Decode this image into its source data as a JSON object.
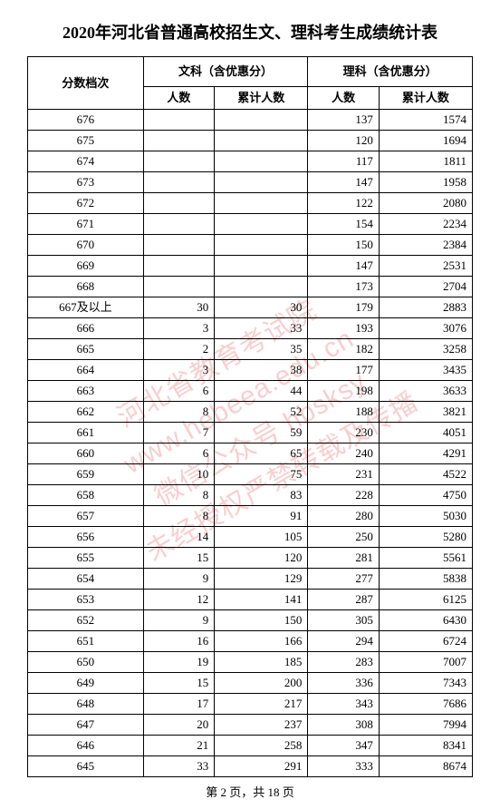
{
  "title": "2020年河北省普通高校招生文、理科考生成绩统计表",
  "header": {
    "score_col": "分数档次",
    "wen_group": "文科（含优惠分）",
    "li_group": "理科（含优惠分）",
    "count": "人数",
    "cum": "累计人数"
  },
  "rows": [
    {
      "score": "676",
      "wc": "",
      "wcc": "",
      "lc": "137",
      "lcc": "1574"
    },
    {
      "score": "675",
      "wc": "",
      "wcc": "",
      "lc": "120",
      "lcc": "1694"
    },
    {
      "score": "674",
      "wc": "",
      "wcc": "",
      "lc": "117",
      "lcc": "1811"
    },
    {
      "score": "673",
      "wc": "",
      "wcc": "",
      "lc": "147",
      "lcc": "1958"
    },
    {
      "score": "672",
      "wc": "",
      "wcc": "",
      "lc": "122",
      "lcc": "2080"
    },
    {
      "score": "671",
      "wc": "",
      "wcc": "",
      "lc": "154",
      "lcc": "2234"
    },
    {
      "score": "670",
      "wc": "",
      "wcc": "",
      "lc": "150",
      "lcc": "2384"
    },
    {
      "score": "669",
      "wc": "",
      "wcc": "",
      "lc": "147",
      "lcc": "2531"
    },
    {
      "score": "668",
      "wc": "",
      "wcc": "",
      "lc": "173",
      "lcc": "2704"
    },
    {
      "score": "667及以上",
      "wc": "30",
      "wcc": "30",
      "lc": "179",
      "lcc": "2883"
    },
    {
      "score": "666",
      "wc": "3",
      "wcc": "33",
      "lc": "193",
      "lcc": "3076"
    },
    {
      "score": "665",
      "wc": "2",
      "wcc": "35",
      "lc": "182",
      "lcc": "3258"
    },
    {
      "score": "664",
      "wc": "3",
      "wcc": "38",
      "lc": "177",
      "lcc": "3435"
    },
    {
      "score": "663",
      "wc": "6",
      "wcc": "44",
      "lc": "198",
      "lcc": "3633"
    },
    {
      "score": "662",
      "wc": "8",
      "wcc": "52",
      "lc": "188",
      "lcc": "3821"
    },
    {
      "score": "661",
      "wc": "7",
      "wcc": "59",
      "lc": "230",
      "lcc": "4051"
    },
    {
      "score": "660",
      "wc": "6",
      "wcc": "65",
      "lc": "240",
      "lcc": "4291"
    },
    {
      "score": "659",
      "wc": "10",
      "wcc": "75",
      "lc": "231",
      "lcc": "4522"
    },
    {
      "score": "658",
      "wc": "8",
      "wcc": "83",
      "lc": "228",
      "lcc": "4750"
    },
    {
      "score": "657",
      "wc": "8",
      "wcc": "91",
      "lc": "280",
      "lcc": "5030"
    },
    {
      "score": "656",
      "wc": "14",
      "wcc": "105",
      "lc": "250",
      "lcc": "5280"
    },
    {
      "score": "655",
      "wc": "15",
      "wcc": "120",
      "lc": "281",
      "lcc": "5561"
    },
    {
      "score": "654",
      "wc": "9",
      "wcc": "129",
      "lc": "277",
      "lcc": "5838"
    },
    {
      "score": "653",
      "wc": "12",
      "wcc": "141",
      "lc": "287",
      "lcc": "6125"
    },
    {
      "score": "652",
      "wc": "9",
      "wcc": "150",
      "lc": "305",
      "lcc": "6430"
    },
    {
      "score": "651",
      "wc": "16",
      "wcc": "166",
      "lc": "294",
      "lcc": "6724"
    },
    {
      "score": "650",
      "wc": "19",
      "wcc": "185",
      "lc": "283",
      "lcc": "7007"
    },
    {
      "score": "649",
      "wc": "15",
      "wcc": "200",
      "lc": "336",
      "lcc": "7343"
    },
    {
      "score": "648",
      "wc": "17",
      "wcc": "217",
      "lc": "343",
      "lcc": "7686"
    },
    {
      "score": "647",
      "wc": "20",
      "wcc": "237",
      "lc": "308",
      "lcc": "7994"
    },
    {
      "score": "646",
      "wc": "21",
      "wcc": "258",
      "lc": "347",
      "lcc": "8341"
    },
    {
      "score": "645",
      "wc": "33",
      "wcc": "291",
      "lc": "333",
      "lcc": "8674"
    }
  ],
  "footer": "第 2 页，共 18 页",
  "watermark": "河北省教育考试院\nwww.hebeea.edu.cn\n微信公众号 hbsksy\n未经授权严禁转载及传播"
}
